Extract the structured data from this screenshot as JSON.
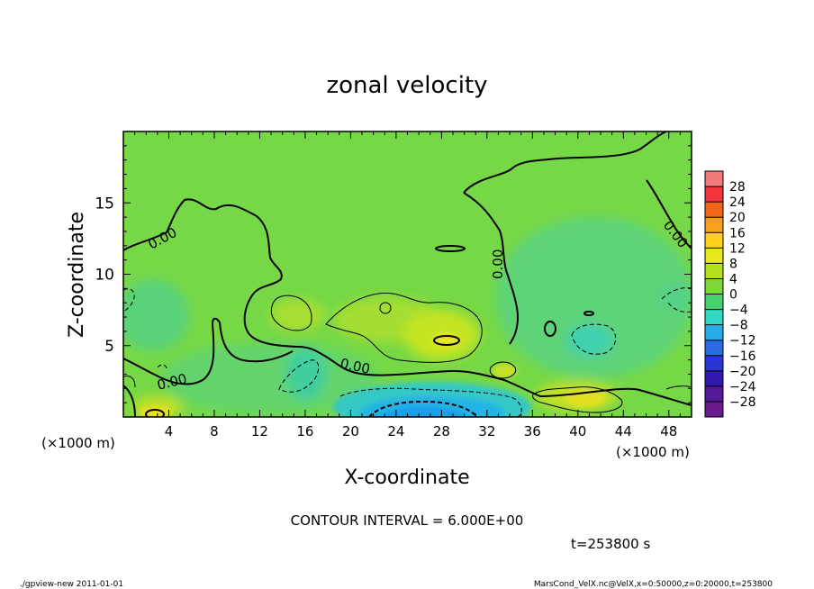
{
  "chart_data": {
    "type": "heatmap",
    "title": "zonal velocity",
    "xlabel": "X-coordinate",
    "ylabel": "Z-coordinate",
    "x_unit_left": "(×1000 m)",
    "x_unit_right": "(×1000 m)",
    "x_ticks": [
      4,
      8,
      12,
      16,
      20,
      24,
      28,
      32,
      36,
      40,
      44,
      48
    ],
    "y_ticks": [
      5,
      10,
      15
    ],
    "xlim": [
      0,
      50
    ],
    "ylim": [
      0,
      20
    ],
    "colorbar": {
      "levels": [
        28,
        24,
        20,
        16,
        12,
        8,
        4,
        0,
        -4,
        -8,
        -12,
        -16,
        -20,
        -24,
        -28
      ],
      "labels": [
        "28",
        "24",
        "20",
        "16",
        "12",
        "8",
        "4",
        "0",
        "−4",
        "−8",
        "−12",
        "−16",
        "−20",
        "−24",
        "−28"
      ],
      "colors": [
        "#f47a7a",
        "#f2353c",
        "#f26419",
        "#f7a11c",
        "#ffd21c",
        "#e8e81c",
        "#b4e01c",
        "#7fd838",
        "#46d26e",
        "#33d8c0",
        "#28aee6",
        "#2a6ce6",
        "#2b36d2",
        "#3218b0",
        "#55199a",
        "#6a1c8c"
      ]
    },
    "contour_labels": [
      "0.00",
      "0.00",
      "0.00",
      "0.00",
      "0.00"
    ],
    "contour_interval_text": "CONTOUR INTERVAL = 6.000E+00",
    "time_text": "t=253800 s",
    "colors": {
      "background_green": "#74d744",
      "contour": "#000000"
    }
  },
  "footer": {
    "left": "./gpview-new  2011-01-01",
    "right": "MarsCond_VelX.nc@VelX,x=0:50000,z=0:20000,t=253800"
  }
}
